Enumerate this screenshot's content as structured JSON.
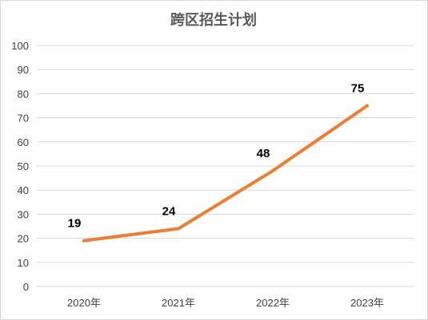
{
  "chart_data": {
    "type": "line",
    "title": "跨区招生计划",
    "categories": [
      "2020年",
      "2021年",
      "2022年",
      "2023年"
    ],
    "series": [
      {
        "values": [
          19,
          24,
          48,
          75
        ]
      }
    ],
    "ylim": [
      0,
      100
    ],
    "yticks": [
      0,
      10,
      20,
      30,
      40,
      50,
      60,
      70,
      80,
      90,
      100
    ],
    "grid": true,
    "data_labels": true,
    "line_color": "#ED7D31"
  }
}
